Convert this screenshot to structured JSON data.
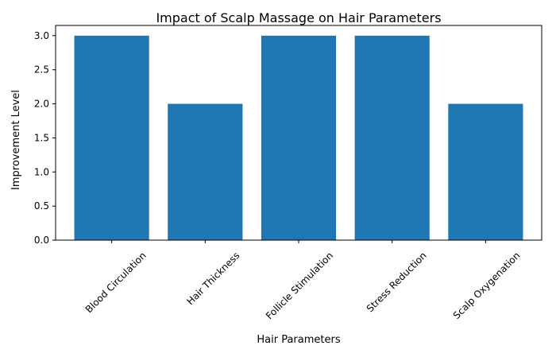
{
  "chart_data": {
    "type": "bar",
    "title": "Impact of Scalp Massage on Hair Parameters",
    "xlabel": "Hair Parameters",
    "ylabel": "Improvement Level",
    "categories": [
      "Blood Circulation",
      "Hair Thickness",
      "Follicle Stimulation",
      "Stress Reduction",
      "Scalp Oxygenation"
    ],
    "values": [
      3,
      2,
      3,
      3,
      2
    ],
    "ylim": [
      0,
      3.15
    ],
    "yticks": [
      "0.0",
      "0.5",
      "1.0",
      "1.5",
      "2.0",
      "2.5",
      "3.0"
    ],
    "bar_color": "#1f77b4",
    "grid": false,
    "legend": "none",
    "x_tick_rotation": "45 degrees"
  }
}
